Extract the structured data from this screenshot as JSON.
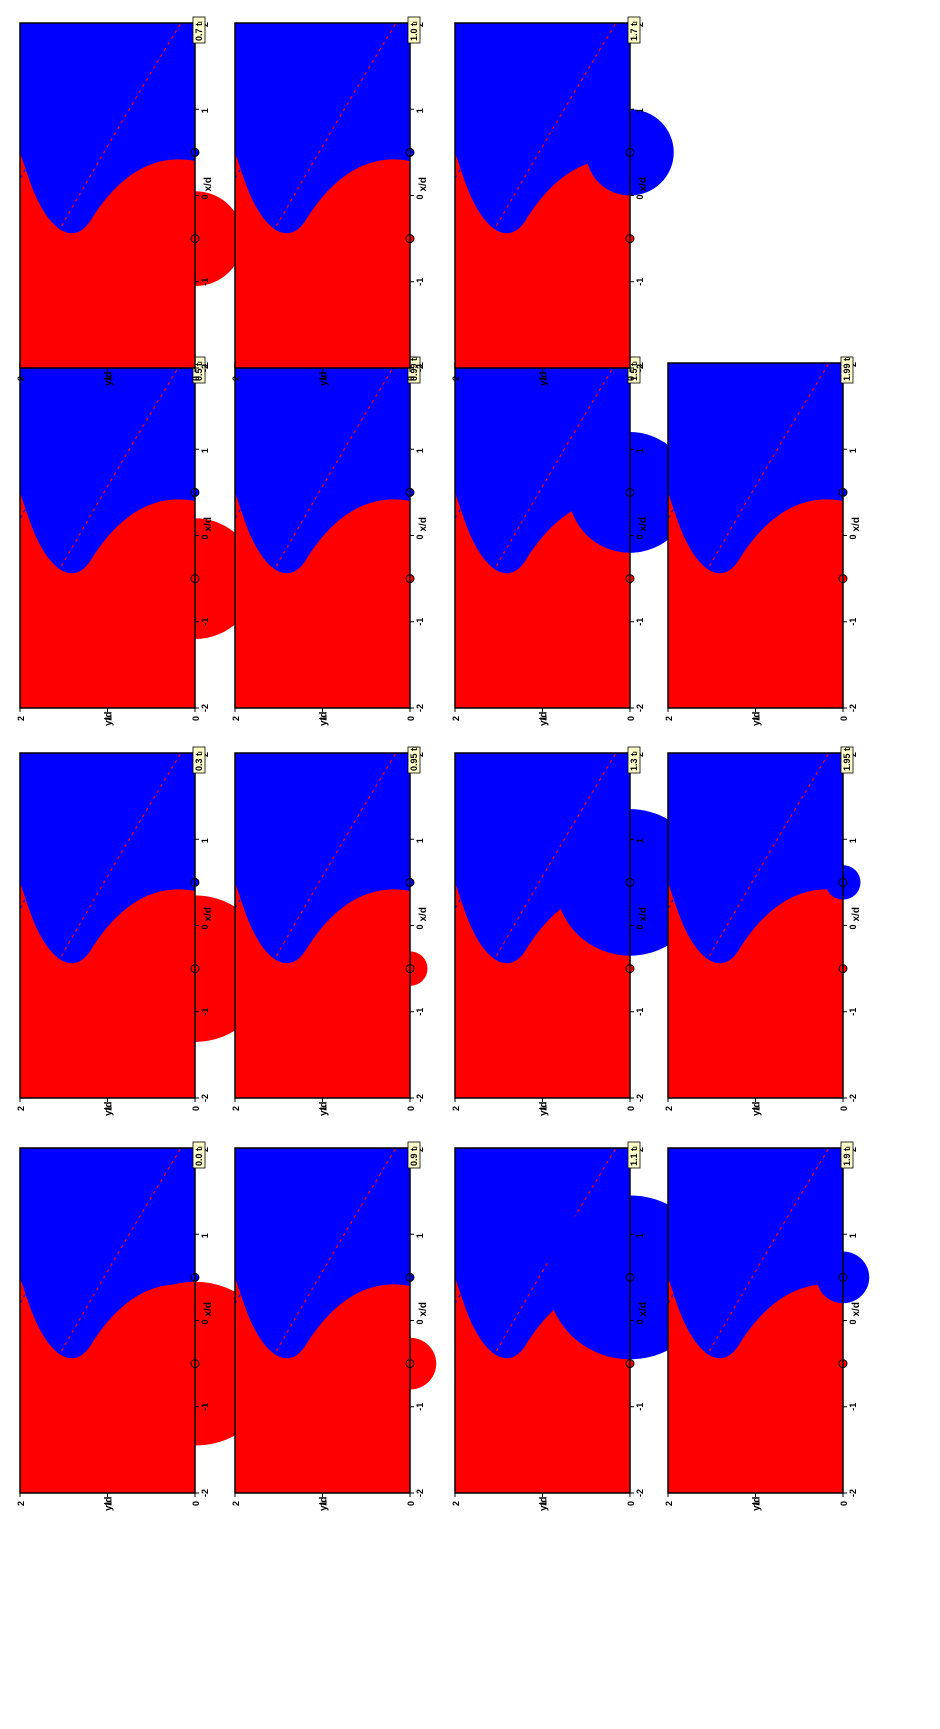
{
  "figure": {
    "xlabel": "x/d",
    "ylabel": "y/d",
    "x_ticks": [
      "-2",
      "-1",
      "0",
      "1",
      "2"
    ],
    "y_ticks": [
      "0",
      "1",
      "2"
    ],
    "colors": {
      "red_region": "#ff0000",
      "blue_region": "#0000ff",
      "label_box": "#ffffcc"
    },
    "panels": [
      {
        "label": "0.0 tₗ",
        "red_disk_radius": 0.95
      },
      {
        "label": "0.3 tₗ",
        "red_disk_radius": 0.85
      },
      {
        "label": "0.5 tₗ",
        "red_disk_radius": 0.7
      },
      {
        "label": "0.7 tₗ",
        "red_disk_radius": 0.55
      },
      {
        "label": "0.9 tₗ",
        "red_disk_radius": 0.3
      },
      {
        "label": "0.95 tₗ",
        "red_disk_radius": 0.2
      },
      {
        "label": "0.99 tₗ",
        "red_disk_radius": 0.05
      },
      {
        "label": "1.0 tₗ",
        "red_disk_radius": 0.0
      },
      {
        "label": "1.1 tₗ",
        "blue_disk_radius": 0.95
      },
      {
        "label": "1.3 tₗ",
        "blue_disk_radius": 0.85
      },
      {
        "label": "1.5 tₗ",
        "blue_disk_radius": 0.7
      },
      {
        "label": "1.7 tₗ",
        "blue_disk_radius": 0.5
      },
      {
        "label": "1.9 tₗ",
        "blue_disk_radius": 0.3
      },
      {
        "label": "1.95 tₗ",
        "blue_disk_radius": 0.2
      },
      {
        "label": "1.99 tₗ",
        "blue_disk_radius": 0.05
      }
    ]
  }
}
